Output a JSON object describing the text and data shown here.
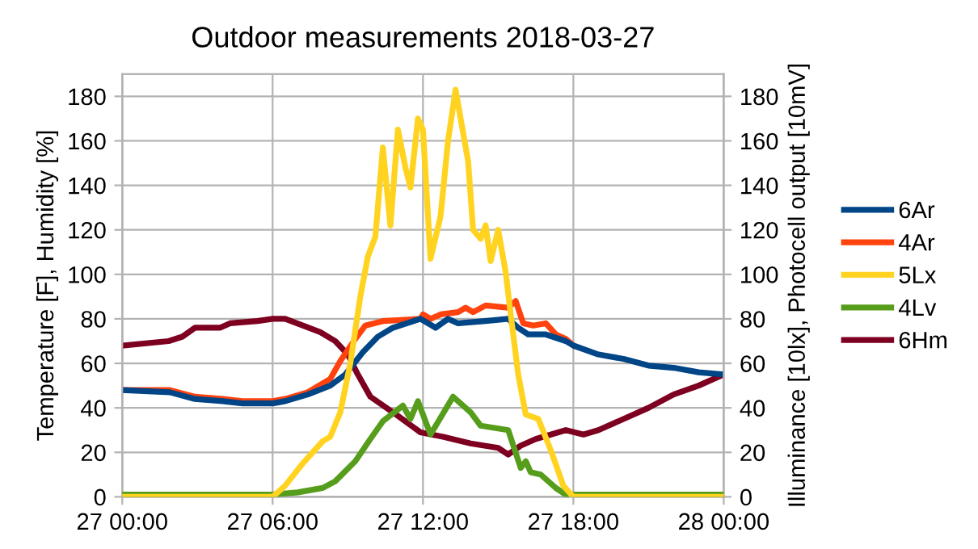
{
  "chart_data": {
    "type": "line",
    "title": "Outdoor measurements 2018-03-27",
    "ylabel": "Temperature [F], Humidity [%]",
    "y2label": "Illuminance [10lx], Photocell output [10mV]",
    "xlim": [
      "2018-03-27T00:00",
      "2018-03-28T00:00"
    ],
    "xticks": [
      {
        "value": "2018-03-27T00:00",
        "label": "27 00:00"
      },
      {
        "value": "2018-03-27T06:00",
        "label": "27 06:00"
      },
      {
        "value": "2018-03-27T12:00",
        "label": "27 12:00"
      },
      {
        "value": "2018-03-27T18:00",
        "label": "27 18:00"
      },
      {
        "value": "2018-03-28T00:00",
        "label": "28 00:00"
      }
    ],
    "ylim": [
      0,
      190
    ],
    "yticks": [
      0,
      20,
      40,
      60,
      80,
      100,
      120,
      140,
      160,
      180
    ],
    "y2lim": [
      0,
      190
    ],
    "y2ticks": [
      0,
      20,
      40,
      60,
      80,
      100,
      120,
      140,
      160,
      180
    ],
    "grid": true,
    "legend": "right",
    "line_style": "solid",
    "marker": "none",
    "series": [
      {
        "name": "6Ar",
        "color": "#004586",
        "x": [
          "2018-03-27T00:00",
          "2018-03-27T01:54",
          "2018-03-27T02:54",
          "2018-03-27T04:00",
          "2018-03-27T04:48",
          "2018-03-27T06:00",
          "2018-03-27T06:30",
          "2018-03-27T07:24",
          "2018-03-27T08:18",
          "2018-03-27T08:54",
          "2018-03-27T09:36",
          "2018-03-27T10:12",
          "2018-03-27T10:48",
          "2018-03-27T11:54",
          "2018-03-27T12:30",
          "2018-03-27T13:00",
          "2018-03-27T13:24",
          "2018-03-27T14:30",
          "2018-03-27T15:24",
          "2018-03-27T15:48",
          "2018-03-27T16:12",
          "2018-03-27T16:54",
          "2018-03-27T17:42",
          "2018-03-27T18:00",
          "2018-03-27T19:00",
          "2018-03-27T20:00",
          "2018-03-27T21:00",
          "2018-03-27T22:00",
          "2018-03-27T23:00",
          "2018-03-28T00:00"
        ],
        "values": [
          48,
          47,
          44,
          43,
          42,
          42,
          43,
          46,
          50,
          55,
          65,
          72,
          76,
          80,
          76,
          80,
          78,
          79,
          80,
          76,
          73,
          73,
          70,
          68,
          64,
          62,
          59,
          58,
          56,
          55
        ]
      },
      {
        "name": "4Ar",
        "color": "#ff420e",
        "x": [
          "2018-03-27T00:00",
          "2018-03-27T01:54",
          "2018-03-27T02:54",
          "2018-03-27T04:00",
          "2018-03-27T04:48",
          "2018-03-27T06:00",
          "2018-03-27T06:30",
          "2018-03-27T07:24",
          "2018-03-27T08:18",
          "2018-03-27T08:42",
          "2018-03-27T09:18",
          "2018-03-27T09:42",
          "2018-03-27T10:24",
          "2018-03-27T11:54",
          "2018-03-27T12:00",
          "2018-03-27T12:18",
          "2018-03-27T12:42",
          "2018-03-27T13:24",
          "2018-03-27T13:42",
          "2018-03-27T14:00",
          "2018-03-27T14:30",
          "2018-03-27T15:24",
          "2018-03-27T15:42",
          "2018-03-27T16:00",
          "2018-03-27T16:24",
          "2018-03-27T16:54",
          "2018-03-27T17:18",
          "2018-03-27T17:42",
          "2018-03-27T18:00"
        ],
        "values": [
          48,
          48,
          45,
          44,
          43,
          43,
          44,
          47,
          53,
          61,
          71,
          77,
          79,
          80,
          82,
          80,
          82,
          83,
          85,
          83,
          86,
          85,
          88,
          78,
          77,
          78,
          73,
          71,
          68
        ]
      },
      {
        "name": "5Lx",
        "color": "#ffd320",
        "axis": "y2",
        "x": [
          "2018-03-27T00:00",
          "2018-03-27T06:00",
          "2018-03-27T06:30",
          "2018-03-27T07:12",
          "2018-03-27T07:36",
          "2018-03-27T08:00",
          "2018-03-27T08:18",
          "2018-03-27T08:42",
          "2018-03-27T09:06",
          "2018-03-27T09:30",
          "2018-03-27T09:48",
          "2018-03-27T10:06",
          "2018-03-27T10:24",
          "2018-03-27T10:42",
          "2018-03-27T11:00",
          "2018-03-27T11:18",
          "2018-03-27T11:30",
          "2018-03-27T11:48",
          "2018-03-27T12:00",
          "2018-03-27T12:18",
          "2018-03-27T12:42",
          "2018-03-27T13:00",
          "2018-03-27T13:18",
          "2018-03-27T13:48",
          "2018-03-27T14:00",
          "2018-03-27T14:18",
          "2018-03-27T14:30",
          "2018-03-27T14:42",
          "2018-03-27T15:00",
          "2018-03-27T15:18",
          "2018-03-27T15:30",
          "2018-03-27T15:48",
          "2018-03-27T16:06",
          "2018-03-27T16:36",
          "2018-03-27T17:06",
          "2018-03-27T17:36",
          "2018-03-27T18:00",
          "2018-03-28T00:00"
        ],
        "values": [
          0,
          0,
          5,
          15,
          20,
          25,
          27,
          38,
          60,
          90,
          108,
          117,
          157,
          122,
          165,
          148,
          139,
          170,
          165,
          107,
          126,
          160,
          183,
          151,
          120,
          116,
          122,
          106,
          120,
          101,
          82,
          55,
          37,
          35,
          21,
          5,
          0,
          0
        ]
      },
      {
        "name": "4Lv",
        "color": "#579d1c",
        "axis": "y2",
        "x": [
          "2018-03-27T00:00",
          "2018-03-27T06:00",
          "2018-03-27T07:00",
          "2018-03-27T07:30",
          "2018-03-27T08:00",
          "2018-03-27T08:30",
          "2018-03-27T09:18",
          "2018-03-27T09:54",
          "2018-03-27T10:24",
          "2018-03-27T11:12",
          "2018-03-27T11:30",
          "2018-03-27T11:48",
          "2018-03-27T12:18",
          "2018-03-27T13:12",
          "2018-03-27T13:54",
          "2018-03-27T14:18",
          "2018-03-27T15:24",
          "2018-03-27T15:54",
          "2018-03-27T16:06",
          "2018-03-27T16:18",
          "2018-03-27T16:42",
          "2018-03-27T17:18",
          "2018-03-27T17:42",
          "2018-03-27T18:00",
          "2018-03-28T00:00"
        ],
        "values": [
          1,
          1,
          2,
          3,
          4,
          7,
          16,
          26,
          34,
          41,
          35,
          43,
          28,
          45,
          38,
          32,
          30,
          13,
          16,
          11,
          10,
          4,
          1,
          1,
          1
        ]
      },
      {
        "name": "6Hm",
        "color": "#7e0021",
        "x": [
          "2018-03-27T00:00",
          "2018-03-27T01:51",
          "2018-03-27T02:24",
          "2018-03-27T02:54",
          "2018-03-27T03:54",
          "2018-03-27T04:18",
          "2018-03-27T05:24",
          "2018-03-27T06:00",
          "2018-03-27T06:30",
          "2018-03-27T07:12",
          "2018-03-27T07:54",
          "2018-03-27T08:30",
          "2018-03-27T09:00",
          "2018-03-27T09:24",
          "2018-03-27T09:54",
          "2018-03-27T10:48",
          "2018-03-27T11:54",
          "2018-03-27T12:48",
          "2018-03-27T13:54",
          "2018-03-27T15:00",
          "2018-03-27T15:24",
          "2018-03-27T15:54",
          "2018-03-27T16:30",
          "2018-03-27T17:42",
          "2018-03-27T18:24",
          "2018-03-27T19:00",
          "2018-03-27T20:00",
          "2018-03-27T21:00",
          "2018-03-27T22:00",
          "2018-03-27T23:00",
          "2018-03-28T00:00"
        ],
        "values": [
          68,
          70,
          72,
          76,
          76,
          78,
          79,
          80,
          80,
          77,
          74,
          70,
          64,
          55,
          45,
          38,
          29,
          27,
          24,
          22,
          19,
          23,
          26,
          30,
          28,
          30,
          35,
          40,
          46,
          50,
          55
        ]
      }
    ]
  }
}
